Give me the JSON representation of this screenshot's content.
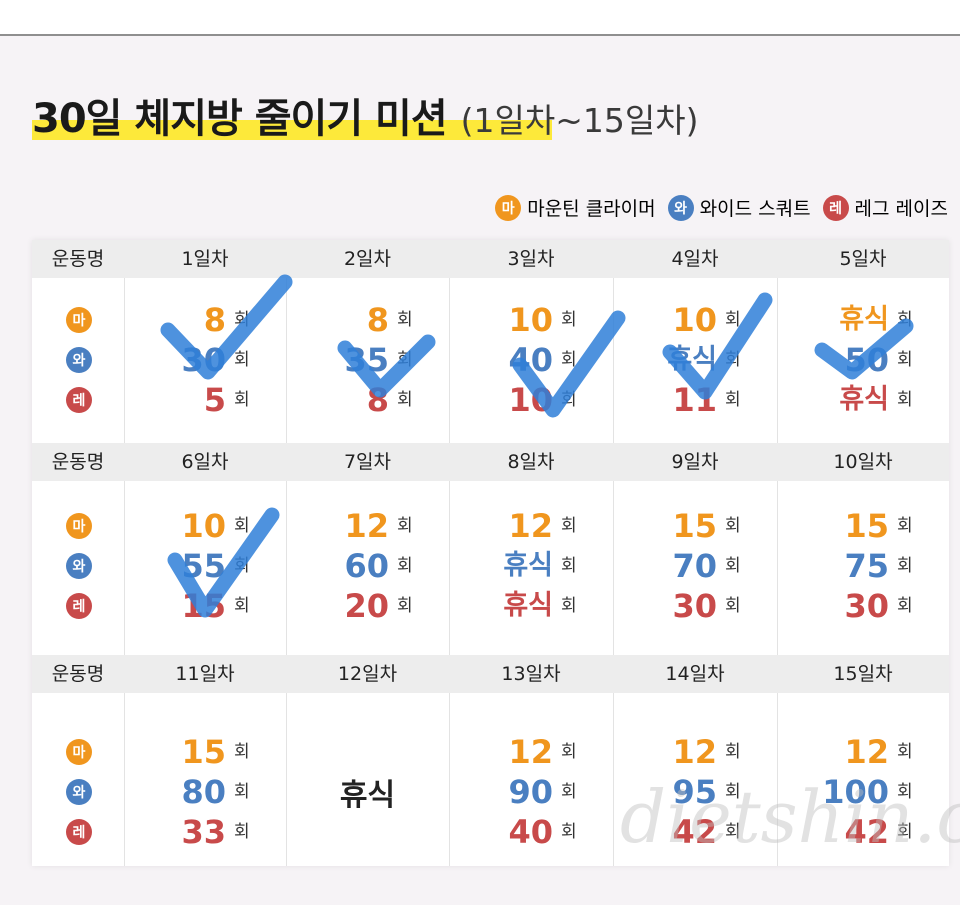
{
  "title": {
    "main": "30일 체지방 줄이기 미션",
    "sub": "(1일차~15일차)"
  },
  "legend": [
    {
      "badge": "마",
      "label": "마운틴 클라이머",
      "color": "#f0961e"
    },
    {
      "badge": "와",
      "label": "와이드 스쿼트",
      "color": "#4a7fc1"
    },
    {
      "badge": "레",
      "label": "레그 레이즈",
      "color": "#c84a4a"
    }
  ],
  "table": {
    "label_header": "운동명",
    "unit": "회",
    "rows": [
      {
        "days": [
          {
            "day": "1일차",
            "values": [
              "8",
              "30",
              "5"
            ]
          },
          {
            "day": "2일차",
            "values": [
              "8",
              "35",
              "8"
            ]
          },
          {
            "day": "3일차",
            "values": [
              "10",
              "40",
              "10"
            ]
          },
          {
            "day": "4일차",
            "values": [
              "10",
              "휴식",
              "11"
            ]
          },
          {
            "day": "5일차",
            "values": [
              "휴식",
              "50",
              "휴식"
            ]
          }
        ]
      },
      {
        "days": [
          {
            "day": "6일차",
            "values": [
              "10",
              "55",
              "15"
            ]
          },
          {
            "day": "7일차",
            "values": [
              "12",
              "60",
              "20"
            ]
          },
          {
            "day": "8일차",
            "values": [
              "12",
              "휴식",
              "휴식"
            ]
          },
          {
            "day": "9일차",
            "values": [
              "15",
              "70",
              "30"
            ]
          },
          {
            "day": "10일차",
            "values": [
              "15",
              "75",
              "30"
            ]
          }
        ]
      },
      {
        "days": [
          {
            "day": "11일차",
            "values": [
              "15",
              "80",
              "33"
            ]
          },
          {
            "day": "12일차",
            "rest": "휴식"
          },
          {
            "day": "13일차",
            "values": [
              "12",
              "90",
              "40"
            ]
          },
          {
            "day": "14일차",
            "values": [
              "12",
              "95",
              "42"
            ]
          },
          {
            "day": "15일차",
            "values": [
              "12",
              "100",
              "42"
            ]
          }
        ]
      }
    ]
  },
  "checked_days": [
    "1일차",
    "2일차",
    "3일차",
    "4일차",
    "5일차",
    "6일차"
  ],
  "colors": {
    "orange": "#f0961e",
    "blue": "#4a7fc1",
    "red": "#c84a4a",
    "check": "#2f7fd8",
    "highlight": "#fde93a"
  },
  "watermark": "dietshin.com"
}
